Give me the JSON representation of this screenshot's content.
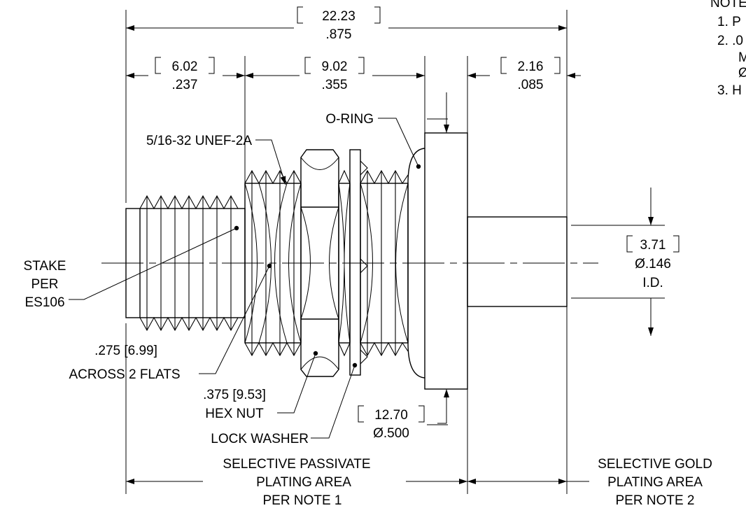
{
  "notes": {
    "header": "NOTES",
    "lines": [
      "1. P",
      "2. .0",
      "M",
      "Ø",
      "3. H"
    ]
  },
  "dims": {
    "overall_mm": "22.23",
    "overall_in": ".875",
    "left_mm": "6.02",
    "left_in": ".237",
    "mid_mm": "9.02",
    "mid_in": ".355",
    "right_mm": "2.16",
    "right_in": ".085",
    "id_mm": "3.71",
    "id_in": "Ø.146",
    "id_label": "I.D.",
    "flange_mm": "12.70",
    "flange_in": "Ø.500"
  },
  "labels": {
    "oring": "O-RING",
    "thread": "5/16-32 UNEF-2A",
    "stake_1": "STAKE",
    "stake_2": "PER",
    "stake_3": "ES106",
    "flats_1": ".275 [6.99]",
    "flats_2": "ACROSS 2 FLATS",
    "hex_1": ".375 [9.53]",
    "hex_2": "HEX NUT",
    "lockwasher": "LOCK WASHER",
    "passivate_1": "SELECTIVE PASSIVATE",
    "passivate_2": "PLATING AREA",
    "passivate_3": "PER NOTE 1",
    "gold_1": "SELECTIVE GOLD",
    "gold_2": "PLATING AREA",
    "gold_3": "PER NOTE 2"
  }
}
